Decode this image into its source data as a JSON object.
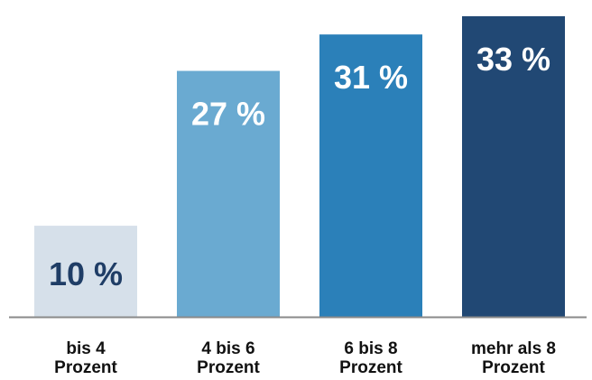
{
  "chart_data": {
    "type": "bar",
    "categories": [
      [
        "bis 4",
        "Prozent"
      ],
      [
        "4 bis 6",
        "Prozent"
      ],
      [
        "6 bis 8",
        "Prozent"
      ],
      [
        "mehr als 8",
        "Prozent"
      ]
    ],
    "values": [
      10,
      27,
      31,
      33
    ],
    "value_labels": [
      "10 %",
      "27 %",
      "31 %",
      "33 %"
    ],
    "bar_colors": [
      "#d6e0ea",
      "#6aaad1",
      "#2b80b9",
      "#214874"
    ],
    "label_colors": [
      "#1f3d66",
      "#ffffff",
      "#ffffff",
      "#ffffff"
    ],
    "axis_color": "#8a8a8a",
    "title": "",
    "xlabel": "",
    "ylabel": "",
    "ylim": [
      0,
      33
    ],
    "grid": false,
    "legend": "none"
  }
}
